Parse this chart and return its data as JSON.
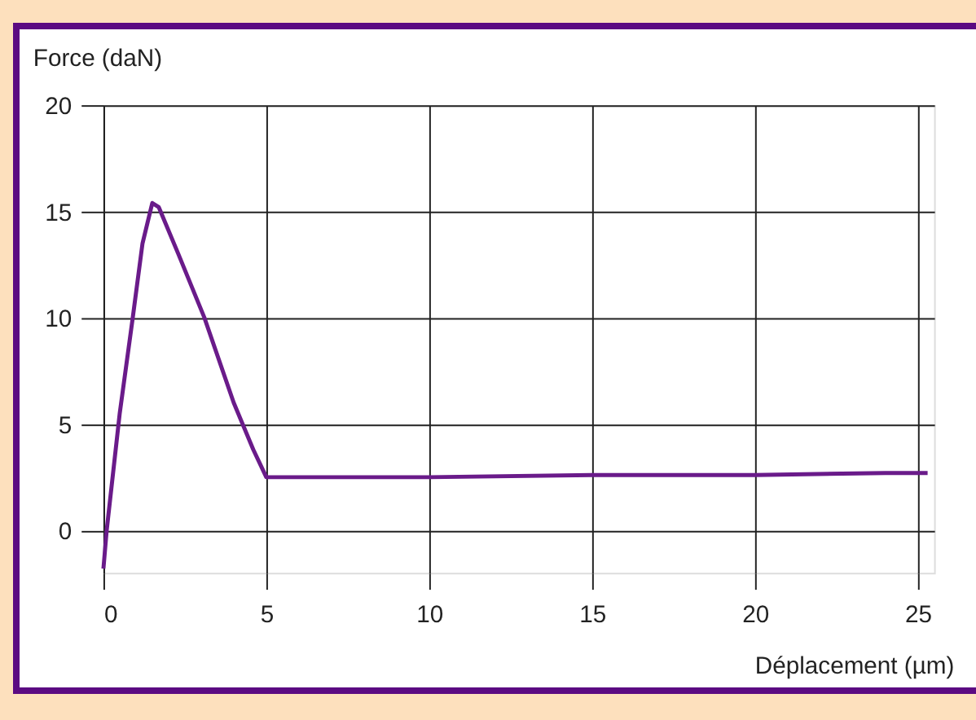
{
  "chart_data": {
    "type": "line",
    "xlabel": "Déplacement (µm)",
    "ylabel": "Force (daN)",
    "x": [
      0,
      0.1,
      0.5,
      0.9,
      1.2,
      1.5,
      1.7,
      2.3,
      3.1,
      4,
      4.6,
      5,
      7,
      10,
      15,
      20,
      24,
      25.3
    ],
    "series": [
      {
        "color": "#6a1b8a",
        "values": [
          -1.8,
          0,
          5.5,
          10,
          13.5,
          15.4,
          15.2,
          13,
          10,
          6,
          3.8,
          2.5,
          2.5,
          2.5,
          2.6,
          2.6,
          2.7,
          2.7
        ]
      }
    ],
    "xlim": [
      0,
      25.5
    ],
    "ylim": [
      -2,
      20
    ],
    "xticks": [
      0,
      5,
      10,
      15,
      20,
      25
    ],
    "yticks": [
      0,
      5,
      10,
      15,
      20
    ],
    "grid": true,
    "marker": "none",
    "line_style": "solid"
  }
}
